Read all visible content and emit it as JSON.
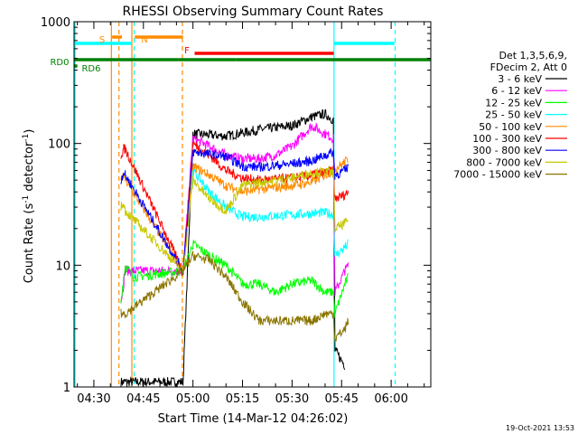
{
  "chart_data": {
    "type": "line",
    "title": "RHESSI Observing Summary Count Rates",
    "xlabel": "Start Time (14-Mar-12 04:26:02)",
    "ylabel_main": "Count Rate (s",
    "ylabel_sup1": "-1",
    "ylabel_mid": " detector",
    "ylabel_sup2": "-1",
    "ylabel_end": ")",
    "y_scale": "log",
    "ylim": [
      1,
      1000
    ],
    "xlim_minutes": [
      264,
      372
    ],
    "x_ticks": [
      {
        "label": "04:30",
        "minutes": 270
      },
      {
        "label": "04:45",
        "minutes": 285
      },
      {
        "label": "05:00",
        "minutes": 300
      },
      {
        "label": "05:15",
        "minutes": 315
      },
      {
        "label": "05:30",
        "minutes": 330
      },
      {
        "label": "05:45",
        "minutes": 345
      },
      {
        "label": "06:00",
        "minutes": 360
      }
    ],
    "y_ticks": [
      {
        "label": "1",
        "value": 1
      },
      {
        "label": "10",
        "value": 10
      },
      {
        "label": "100",
        "value": 100
      },
      {
        "label": "1000",
        "value": 1000
      }
    ],
    "legend_header": [
      "Det 1,3,5,6,9,",
      "FDecim 2, Att 0"
    ],
    "legend_placement": "right",
    "series": [
      {
        "name": "3 - 6 keV",
        "color": "#000000",
        "points": [
          [
            278.2,
            1.1
          ],
          [
            278.8,
            1.1
          ],
          [
            279.5,
            1.1
          ],
          [
            285,
            1.1
          ],
          [
            297,
            1.1
          ],
          [
            300,
            120
          ],
          [
            310,
            115
          ],
          [
            320,
            130
          ],
          [
            330,
            140
          ],
          [
            336,
            165
          ],
          [
            340,
            175
          ],
          [
            342.5,
            155
          ],
          [
            343,
            2
          ],
          [
            346,
            1.5
          ]
        ]
      },
      {
        "name": "6 - 12 keV",
        "color": "#ff00ff",
        "points": [
          [
            278.2,
            5
          ],
          [
            279,
            7
          ],
          [
            279.5,
            9
          ],
          [
            282,
            9
          ],
          [
            297,
            9
          ],
          [
            300,
            110
          ],
          [
            305,
            95
          ],
          [
            310,
            80
          ],
          [
            315,
            75
          ],
          [
            320,
            75
          ],
          [
            325,
            80
          ],
          [
            330,
            95
          ],
          [
            336,
            140
          ],
          [
            340,
            120
          ],
          [
            342.5,
            110
          ],
          [
            343,
            6
          ],
          [
            346,
            9
          ],
          [
            347,
            10
          ]
        ]
      },
      {
        "name": "12 - 25 keV",
        "color": "#00ff00",
        "points": [
          [
            278.2,
            5
          ],
          [
            279,
            8
          ],
          [
            279.5,
            10
          ],
          [
            282,
            8
          ],
          [
            297,
            9
          ],
          [
            300,
            15
          ],
          [
            305,
            12
          ],
          [
            310,
            10
          ],
          [
            315,
            7
          ],
          [
            320,
            7
          ],
          [
            325,
            6
          ],
          [
            330,
            7
          ],
          [
            336,
            7.5
          ],
          [
            340,
            6
          ],
          [
            342.5,
            6
          ],
          [
            343,
            4
          ],
          [
            346,
            7
          ],
          [
            347,
            8
          ]
        ]
      },
      {
        "name": "25 - 50 keV",
        "color": "#00ffff",
        "points": [
          [
            297,
            9
          ],
          [
            300,
            60
          ],
          [
            305,
            40
          ],
          [
            310,
            30
          ],
          [
            315,
            25
          ],
          [
            320,
            25
          ],
          [
            330,
            26
          ],
          [
            340,
            27
          ],
          [
            342.5,
            26
          ],
          [
            343,
            12
          ],
          [
            346,
            14
          ],
          [
            347,
            15
          ]
        ]
      },
      {
        "name": "50 - 100 keV",
        "color": "#ff8c00",
        "points": [
          [
            278.2,
            50
          ],
          [
            279,
            55
          ],
          [
            279.5,
            50
          ],
          [
            297,
            9
          ],
          [
            300,
            65
          ],
          [
            305,
            55
          ],
          [
            310,
            45
          ],
          [
            315,
            40
          ],
          [
            320,
            42
          ],
          [
            330,
            45
          ],
          [
            336,
            48
          ],
          [
            340,
            55
          ],
          [
            342.5,
            60
          ],
          [
            343,
            62
          ],
          [
            346,
            70
          ],
          [
            347,
            75
          ]
        ]
      },
      {
        "name": "100 - 300 keV",
        "color": "#ff0000",
        "points": [
          [
            278.2,
            80
          ],
          [
            279,
            90
          ],
          [
            279.5,
            90
          ],
          [
            297,
            9
          ],
          [
            300,
            100
          ],
          [
            305,
            80
          ],
          [
            310,
            60
          ],
          [
            315,
            52
          ],
          [
            320,
            50
          ],
          [
            330,
            52
          ],
          [
            336,
            55
          ],
          [
            340,
            58
          ],
          [
            342.5,
            60
          ],
          [
            343,
            35
          ],
          [
            346,
            38
          ],
          [
            347,
            40
          ]
        ]
      },
      {
        "name": "300 - 800 keV",
        "color": "#0000ff",
        "points": [
          [
            278.2,
            50
          ],
          [
            279,
            58
          ],
          [
            279.5,
            55
          ],
          [
            297,
            9
          ],
          [
            300,
            85
          ],
          [
            305,
            82
          ],
          [
            310,
            78
          ],
          [
            315,
            65
          ],
          [
            320,
            64
          ],
          [
            330,
            68
          ],
          [
            336,
            72
          ],
          [
            340,
            80
          ],
          [
            342.5,
            85
          ],
          [
            343,
            55
          ],
          [
            346,
            60
          ],
          [
            347,
            65
          ]
        ]
      },
      {
        "name": "800 - 7000 keV",
        "color": "#c8c800",
        "points": [
          [
            278.2,
            30
          ],
          [
            279,
            32
          ],
          [
            279.5,
            28
          ],
          [
            297,
            9
          ],
          [
            300,
            50
          ],
          [
            305,
            35
          ],
          [
            310,
            28
          ],
          [
            315,
            45
          ],
          [
            320,
            48
          ],
          [
            330,
            52
          ],
          [
            336,
            58
          ],
          [
            340,
            58
          ],
          [
            342.5,
            58
          ],
          [
            343,
            20
          ],
          [
            346,
            22
          ],
          [
            347,
            24
          ]
        ]
      },
      {
        "name": "7000 - 15000 keV",
        "color": "#8b7500",
        "points": [
          [
            278.2,
            4
          ],
          [
            279,
            4
          ],
          [
            279.5,
            4
          ],
          [
            297,
            9
          ],
          [
            300,
            12
          ],
          [
            305,
            11
          ],
          [
            310,
            8
          ],
          [
            315,
            5
          ],
          [
            320,
            3.5
          ],
          [
            325,
            3.5
          ],
          [
            330,
            3.5
          ],
          [
            336,
            3.5
          ],
          [
            340,
            4
          ],
          [
            342.5,
            4
          ],
          [
            343,
            2.5
          ],
          [
            346,
            3
          ],
          [
            347,
            3.5
          ]
        ]
      }
    ],
    "status_bars": [
      {
        "label": "S",
        "color": "#ff8c00",
        "segments": [
          [
            275.5,
            278.5
          ]
        ]
      },
      {
        "label": "N",
        "color": "#ff8c00",
        "segments": [
          [
            282.4,
            297
          ]
        ]
      },
      {
        "label": "F",
        "color": "#ff0000",
        "segments": [
          [
            300.5,
            342.6
          ]
        ]
      },
      {
        "label": "",
        "color": "#00ffff",
        "segments": [
          [
            264,
            281.5
          ],
          [
            342.8,
            361
          ]
        ]
      },
      {
        "label": "RD0",
        "color": "#008000",
        "segments": [
          [
            264,
            295.5
          ],
          [
            295.5,
            313
          ],
          [
            313,
            338.5
          ],
          [
            338.5,
            372
          ]
        ]
      },
      {
        "label": "RD6",
        "color": "#008000",
        "segments": [
          [
            264,
            265
          ]
        ]
      }
    ],
    "vertical_markers": [
      {
        "minutes": 264.3,
        "color": "#00ffff",
        "style": "solid"
      },
      {
        "minutes": 275.3,
        "color": "#ff8c00",
        "style": "solid"
      },
      {
        "minutes": 277.6,
        "color": "#ff8c00",
        "style": "dashed"
      },
      {
        "minutes": 281.5,
        "color": "#ff8c00",
        "style": "solid"
      },
      {
        "minutes": 282.2,
        "color": "#00ffff",
        "style": "dashed"
      },
      {
        "minutes": 296.8,
        "color": "#ff8c00",
        "style": "dashed"
      },
      {
        "minutes": 342.7,
        "color": "#00ffff",
        "style": "solid"
      },
      {
        "minutes": 361.2,
        "color": "#00ffff",
        "style": "dashed"
      }
    ],
    "grid": false,
    "timestamp": "19-Oct-2021 13:53"
  }
}
